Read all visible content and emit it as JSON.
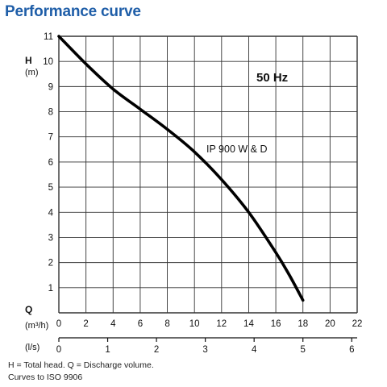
{
  "title": "Performance curve",
  "footnote_line1": "H = Total head. Q = Discharge volume.",
  "footnote_line2": "Curves to ISO 9906",
  "chart_data": {
    "type": "line",
    "frequency_label": "50 Hz",
    "y_axis": {
      "label": "H",
      "unit": "(m)",
      "range": [
        0,
        11
      ],
      "ticks": [
        0,
        1,
        2,
        3,
        4,
        5,
        6,
        7,
        8,
        9,
        10,
        11
      ]
    },
    "x_axis_primary": {
      "label": "Q",
      "unit": "(m³/h)",
      "range": [
        0,
        22
      ],
      "ticks": [
        0,
        2,
        4,
        6,
        8,
        10,
        12,
        14,
        16,
        18,
        20,
        22
      ]
    },
    "x_axis_secondary": {
      "unit": "(l/s)",
      "ticks": [
        0,
        1,
        2,
        3,
        4,
        5,
        6
      ]
    },
    "grid": true,
    "series": [
      {
        "name": "IP 900 W & D",
        "x": [
          0,
          2,
          4,
          6,
          8,
          10,
          12,
          14,
          16,
          17,
          18
        ],
        "y": [
          11,
          9.9,
          8.9,
          8.1,
          7.3,
          6.4,
          5.3,
          4.0,
          2.4,
          1.5,
          0.5
        ]
      }
    ],
    "colors": {
      "curve": "#000000",
      "grid": "#333333",
      "title": "#1f5ea8"
    }
  }
}
